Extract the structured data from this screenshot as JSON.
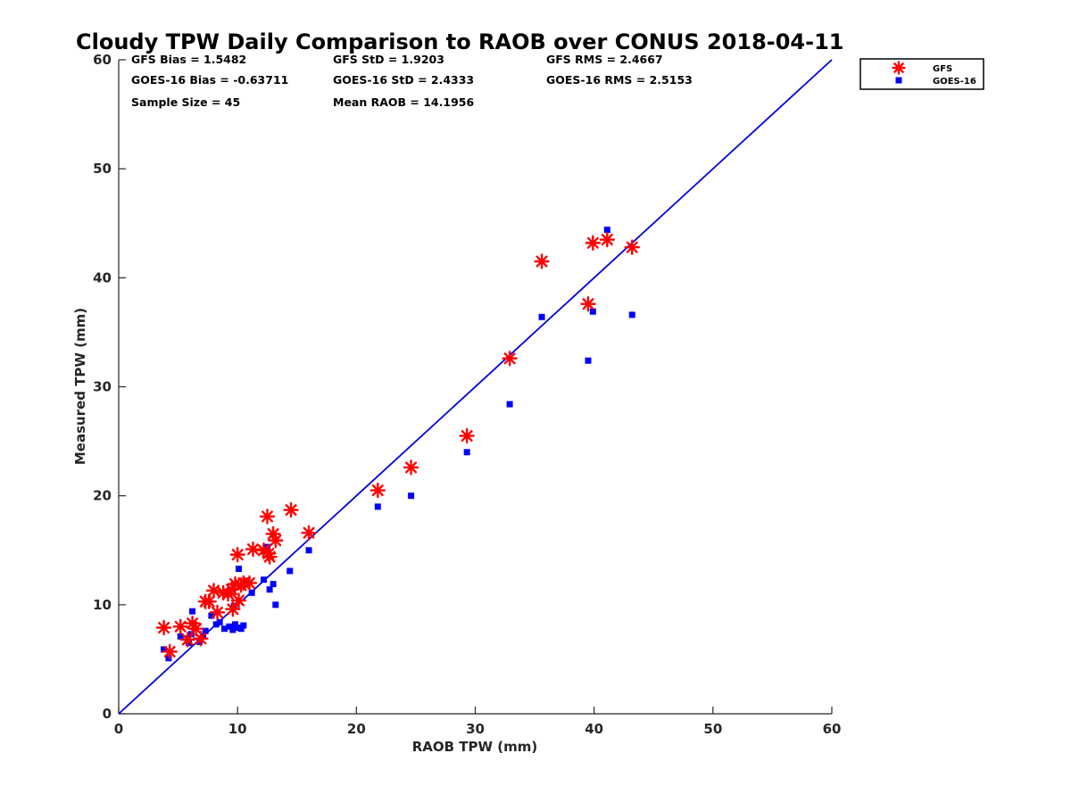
{
  "chart_data": {
    "type": "scatter",
    "title": "Cloudy TPW Daily Comparison to RAOB over CONUS 2018-04-11",
    "xlabel": "RAOB TPW (mm)",
    "ylabel": "Measured TPW (mm)",
    "xlim": [
      0,
      60
    ],
    "ylim": [
      0,
      60
    ],
    "xticks": [
      "0",
      "10",
      "20",
      "30",
      "40",
      "50",
      "60"
    ],
    "yticks": [
      "0",
      "10",
      "20",
      "30",
      "40",
      "50",
      "60"
    ],
    "grid": false,
    "legend_position": "outside-top-right",
    "reference_line": {
      "x": [
        0,
        60
      ],
      "y": [
        0,
        60
      ],
      "color": "#0000dd"
    },
    "stats": [
      [
        "GFS Bias = 1.5482",
        "GFS StD = 1.9203",
        "GFS RMS = 2.4667"
      ],
      [
        "GOES-16 Bias = -0.63711",
        "GOES-16 StD = 2.4333",
        "GOES-16 RMS = 2.5153"
      ],
      [
        "Sample Size = 45",
        "Mean RAOB = 14.1956",
        ""
      ]
    ],
    "series": [
      {
        "name": "GFS",
        "marker": "asterisk",
        "color": "#ff0000",
        "x": [
          3.8,
          4.3,
          5.2,
          5.8,
          6.2,
          6.5,
          6.9,
          7.3,
          7.6,
          8.0,
          8.3,
          8.8,
          9.2,
          9.5,
          9.6,
          9.8,
          10.0,
          10.1,
          10.3,
          10.5,
          11.0,
          11.3,
          12.2,
          12.5,
          12.6,
          12.7,
          13.0,
          13.2,
          14.5,
          16.0,
          21.8,
          24.6,
          29.3,
          32.9,
          35.6,
          39.5,
          39.9,
          41.1,
          43.2
        ],
        "y": [
          7.9,
          5.7,
          8.0,
          6.8,
          8.3,
          7.8,
          6.9,
          10.3,
          10.3,
          11.3,
          9.3,
          11.1,
          11.0,
          11.4,
          9.6,
          11.9,
          14.6,
          10.4,
          11.8,
          12.0,
          12.0,
          15.1,
          15.0,
          18.1,
          14.7,
          14.4,
          16.5,
          15.9,
          18.7,
          16.6,
          20.5,
          22.6,
          25.5,
          32.6,
          41.5,
          37.6,
          43.2,
          43.5,
          42.8
        ]
      },
      {
        "name": "GOES-16",
        "marker": "square",
        "color": "#0000ff",
        "x": [
          3.8,
          4.2,
          5.2,
          5.8,
          5.9,
          6.1,
          6.2,
          6.8,
          7.1,
          7.3,
          7.8,
          8.2,
          8.5,
          8.9,
          9.3,
          9.6,
          9.7,
          9.8,
          10.0,
          10.1,
          10.3,
          10.5,
          10.8,
          11.2,
          12.2,
          12.5,
          12.7,
          13.0,
          13.2,
          14.4,
          16.0,
          21.8,
          24.6,
          29.3,
          32.9,
          35.6,
          39.5,
          39.9,
          41.1,
          43.2
        ],
        "y": [
          5.9,
          5.1,
          7.1,
          6.9,
          6.5,
          7.3,
          9.4,
          6.6,
          7.1,
          7.6,
          9.0,
          8.2,
          8.4,
          7.8,
          8.0,
          7.7,
          9.9,
          8.2,
          7.9,
          13.3,
          7.8,
          8.1,
          12.2,
          11.1,
          12.3,
          15.3,
          11.4,
          11.9,
          10.0,
          13.1,
          15.0,
          19.0,
          20.0,
          24.0,
          28.4,
          36.4,
          32.4,
          36.9,
          44.4,
          36.6
        ]
      }
    ]
  }
}
